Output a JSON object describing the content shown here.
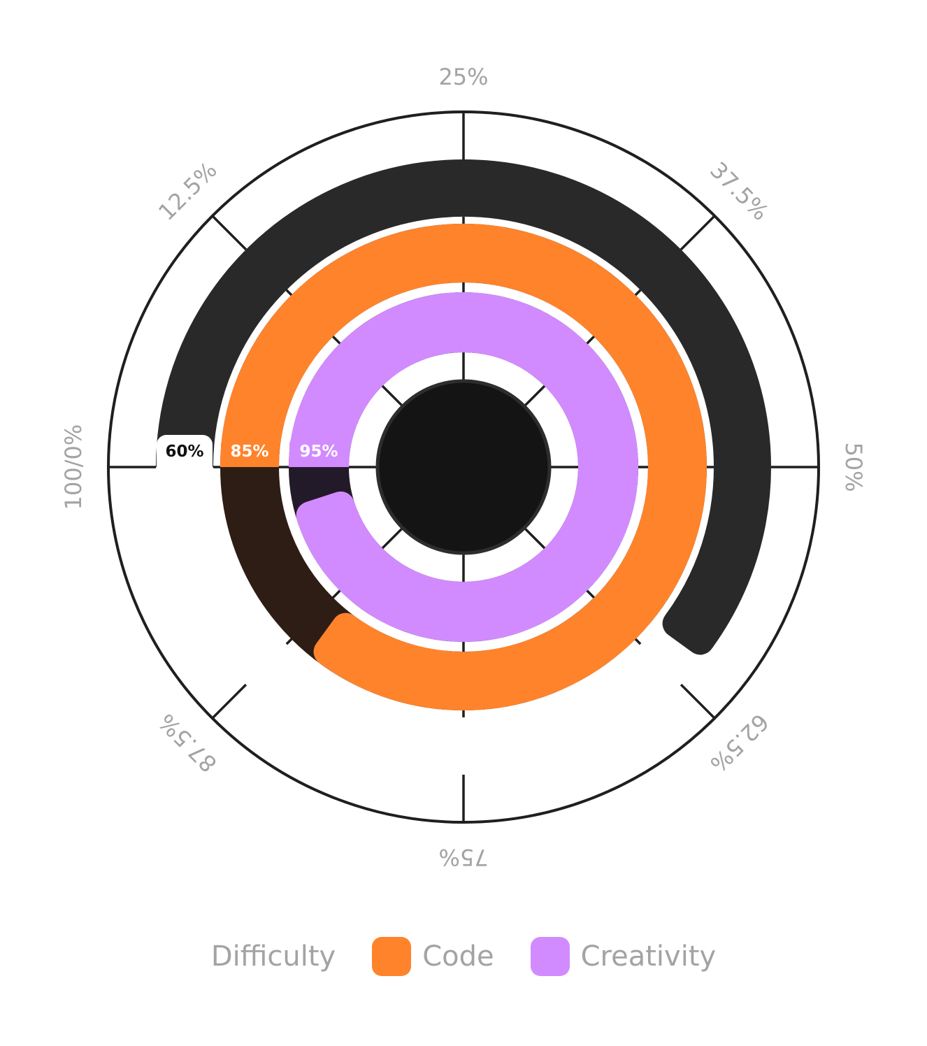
{
  "chart_data": {
    "type": "radial-bar",
    "title": "",
    "axis": {
      "tick_labels": [
        "25%",
        "37.5%",
        "50%",
        "62.5%",
        "75%",
        "87.5%",
        "100/0%",
        "12.5%"
      ],
      "range": [
        0,
        100
      ]
    },
    "series": [
      {
        "name": "Difficulty",
        "value": 60,
        "label": "60%",
        "color": "#292929",
        "track_color": "#ffffff",
        "label_color": "#111111",
        "swatch": false
      },
      {
        "name": "Code",
        "value": 85,
        "label": "85%",
        "color": "#ff832b",
        "track_color": "#2e1d14",
        "label_color": "#ffffff",
        "swatch": true
      },
      {
        "name": "Creativity",
        "value": 95,
        "label": "95%",
        "color": "#d28bff",
        "track_color": "#231a29",
        "label_color": "#ffffff",
        "swatch": true
      }
    ]
  }
}
